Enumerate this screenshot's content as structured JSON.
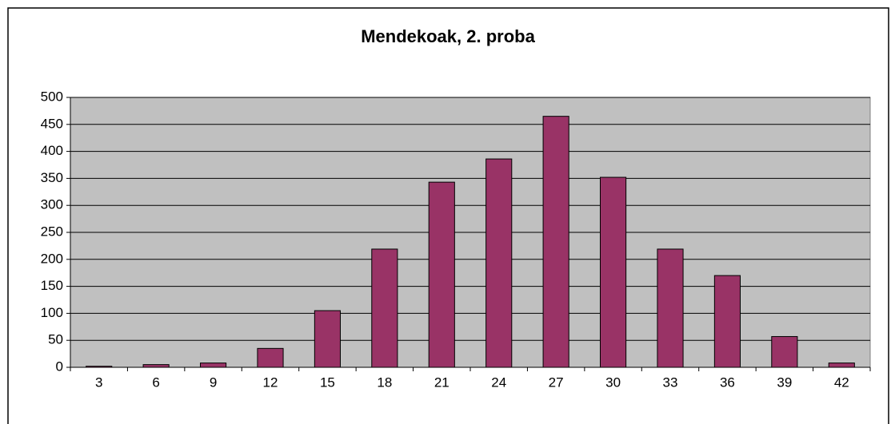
{
  "chart_data": {
    "type": "bar",
    "title": "Mendekoak, 2. proba",
    "categories": [
      "3",
      "6",
      "9",
      "12",
      "15",
      "18",
      "21",
      "24",
      "27",
      "30",
      "33",
      "36",
      "39",
      "42"
    ],
    "values": [
      2,
      5,
      8,
      35,
      105,
      219,
      343,
      386,
      465,
      352,
      219,
      170,
      57,
      8
    ],
    "color": "#993366",
    "ylim": [
      0,
      500
    ],
    "yticks": [
      0,
      50,
      100,
      150,
      200,
      250,
      300,
      350,
      400,
      450,
      500
    ],
    "grid": true
  }
}
